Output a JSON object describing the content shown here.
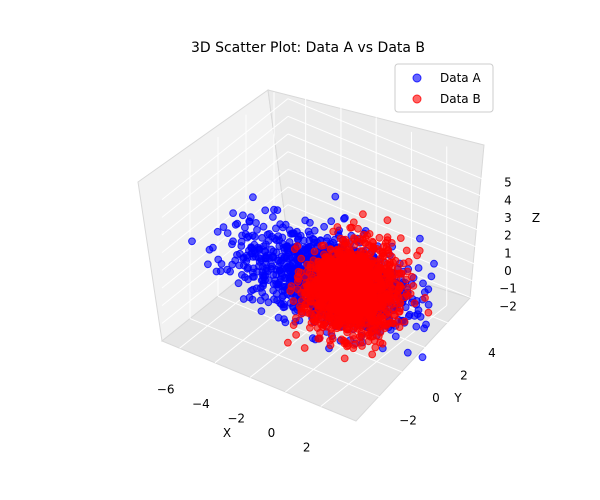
{
  "chart_data": {
    "type": "scatter",
    "projection": "3d",
    "title": "3D Scatter Plot: Data A vs Data B",
    "xlabel": "X",
    "ylabel": "Y",
    "zlabel": "Z",
    "xlim": [
      -7,
      4
    ],
    "ylim": [
      -4,
      5
    ],
    "zlim": [
      -3,
      6
    ],
    "xticks": [
      "−6",
      "−4",
      "−2",
      "0",
      "2"
    ],
    "yticks": [
      "−2",
      "0",
      "2",
      "4"
    ],
    "zticks": [
      "−2",
      "−1",
      "0",
      "1",
      "2",
      "3",
      "4",
      "5"
    ],
    "grid": true,
    "legend_position": "top-right",
    "series": [
      {
        "name": "Data A",
        "color": "#0000ff",
        "alpha": 0.6,
        "description": "dense cloud of points centered near origin, extending toward negative X",
        "center": [
          -1.0,
          0.5,
          0.0
        ],
        "spread": [
          2.0,
          1.0,
          1.0
        ],
        "count": 1200
      },
      {
        "name": "Data B",
        "color": "#ff0000",
        "alpha": 0.6,
        "description": "dense cloud of points centered near origin",
        "center": [
          0.2,
          0.5,
          0.0
        ],
        "spread": [
          1.0,
          1.0,
          1.0
        ],
        "count": 1500
      }
    ]
  }
}
